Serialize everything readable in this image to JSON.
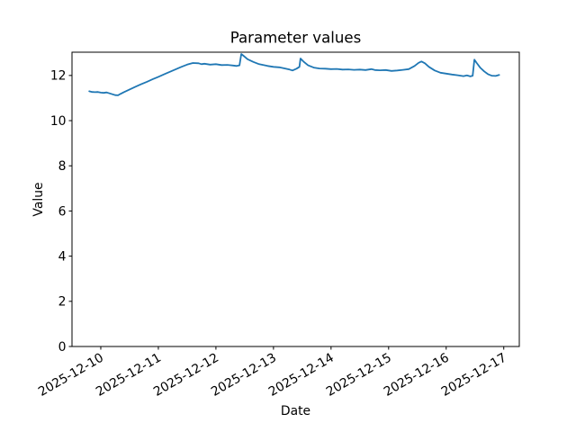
{
  "chart_data": {
    "type": "line",
    "title": "Parameter values",
    "xlabel": "Date",
    "ylabel": "Value",
    "grid": false,
    "legend": false,
    "line_color": "#1f77b4",
    "axis_color": "#000000",
    "background_color": "#ffffff",
    "x_unit": "days since 2025-12-10 00:00",
    "xlim": [
      -0.5,
      7.27
    ],
    "ylim": [
      0,
      13.03
    ],
    "y_ticks": [
      0,
      2,
      4,
      6,
      8,
      10,
      12
    ],
    "x_tick_values": [
      0,
      1,
      2,
      3,
      4,
      5,
      6,
      7
    ],
    "x_tick_labels": [
      "2025-12-10",
      "2025-12-11",
      "2025-12-12",
      "2025-12-13",
      "2025-12-14",
      "2025-12-15",
      "2025-12-16",
      "2025-12-17"
    ],
    "x_tick_rotation_deg": 30,
    "series": [
      {
        "name": "Parameter values",
        "points": [
          [
            -0.2,
            11.3
          ],
          [
            -0.15,
            11.27
          ],
          [
            -0.1,
            11.26
          ],
          [
            -0.05,
            11.27
          ],
          [
            0.0,
            11.24
          ],
          [
            0.05,
            11.23
          ],
          [
            0.1,
            11.25
          ],
          [
            0.15,
            11.21
          ],
          [
            0.2,
            11.17
          ],
          [
            0.25,
            11.13
          ],
          [
            0.3,
            11.12
          ],
          [
            0.34,
            11.18
          ],
          [
            0.4,
            11.26
          ],
          [
            0.5,
            11.38
          ],
          [
            0.6,
            11.5
          ],
          [
            0.7,
            11.61
          ],
          [
            0.8,
            11.72
          ],
          [
            0.9,
            11.83
          ],
          [
            1.0,
            11.94
          ],
          [
            1.1,
            12.05
          ],
          [
            1.2,
            12.16
          ],
          [
            1.3,
            12.27
          ],
          [
            1.4,
            12.38
          ],
          [
            1.5,
            12.48
          ],
          [
            1.6,
            12.55
          ],
          [
            1.7,
            12.54
          ],
          [
            1.75,
            12.5
          ],
          [
            1.8,
            12.52
          ],
          [
            1.9,
            12.48
          ],
          [
            2.0,
            12.5
          ],
          [
            2.1,
            12.46
          ],
          [
            2.2,
            12.47
          ],
          [
            2.3,
            12.44
          ],
          [
            2.36,
            12.42
          ],
          [
            2.41,
            12.45
          ],
          [
            2.44,
            12.95
          ],
          [
            2.48,
            12.87
          ],
          [
            2.55,
            12.72
          ],
          [
            2.65,
            12.6
          ],
          [
            2.75,
            12.5
          ],
          [
            2.9,
            12.42
          ],
          [
            3.0,
            12.38
          ],
          [
            3.1,
            12.36
          ],
          [
            3.2,
            12.31
          ],
          [
            3.28,
            12.26
          ],
          [
            3.33,
            12.22
          ],
          [
            3.4,
            12.3
          ],
          [
            3.45,
            12.38
          ],
          [
            3.47,
            12.75
          ],
          [
            3.52,
            12.62
          ],
          [
            3.6,
            12.45
          ],
          [
            3.7,
            12.35
          ],
          [
            3.8,
            12.31
          ],
          [
            3.9,
            12.3
          ],
          [
            4.0,
            12.28
          ],
          [
            4.1,
            12.29
          ],
          [
            4.2,
            12.26
          ],
          [
            4.3,
            12.27
          ],
          [
            4.4,
            12.25
          ],
          [
            4.5,
            12.26
          ],
          [
            4.6,
            12.24
          ],
          [
            4.7,
            12.28
          ],
          [
            4.76,
            12.24
          ],
          [
            4.85,
            12.23
          ],
          [
            4.95,
            12.24
          ],
          [
            5.05,
            12.2
          ],
          [
            5.15,
            12.22
          ],
          [
            5.25,
            12.25
          ],
          [
            5.35,
            12.28
          ],
          [
            5.45,
            12.42
          ],
          [
            5.52,
            12.56
          ],
          [
            5.57,
            12.62
          ],
          [
            5.63,
            12.54
          ],
          [
            5.7,
            12.38
          ],
          [
            5.8,
            12.22
          ],
          [
            5.9,
            12.12
          ],
          [
            6.0,
            12.08
          ],
          [
            6.1,
            12.04
          ],
          [
            6.2,
            12.01
          ],
          [
            6.3,
            11.97
          ],
          [
            6.36,
            12.0
          ],
          [
            6.42,
            11.96
          ],
          [
            6.46,
            11.99
          ],
          [
            6.49,
            12.7
          ],
          [
            6.53,
            12.55
          ],
          [
            6.59,
            12.35
          ],
          [
            6.66,
            12.18
          ],
          [
            6.73,
            12.05
          ],
          [
            6.79,
            11.99
          ],
          [
            6.86,
            11.98
          ],
          [
            6.92,
            12.02
          ]
        ]
      }
    ]
  }
}
